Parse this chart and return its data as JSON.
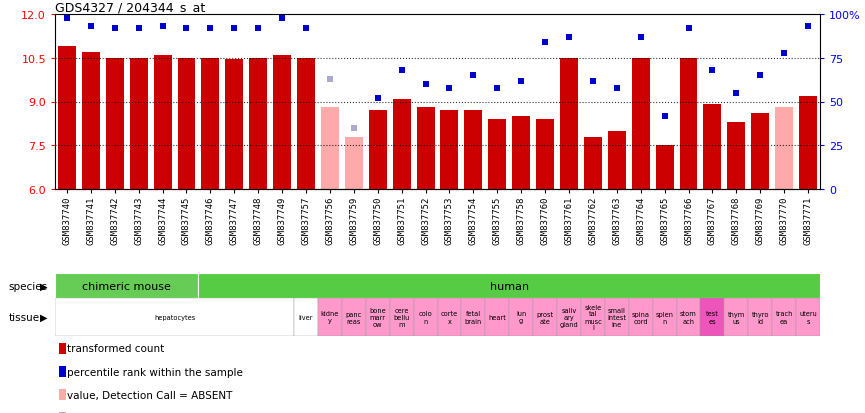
{
  "title": "GDS4327 / 204344_s_at",
  "samples": [
    "GSM837740",
    "GSM837741",
    "GSM837742",
    "GSM837743",
    "GSM837744",
    "GSM837745",
    "GSM837746",
    "GSM837747",
    "GSM837748",
    "GSM837749",
    "GSM837757",
    "GSM837756",
    "GSM837759",
    "GSM837750",
    "GSM837751",
    "GSM837752",
    "GSM837753",
    "GSM837754",
    "GSM837755",
    "GSM837758",
    "GSM837760",
    "GSM837761",
    "GSM837762",
    "GSM837763",
    "GSM837764",
    "GSM837765",
    "GSM837766",
    "GSM837767",
    "GSM837768",
    "GSM837769",
    "GSM837770",
    "GSM837771"
  ],
  "values": [
    10.9,
    10.7,
    10.5,
    10.5,
    10.6,
    10.5,
    10.5,
    10.47,
    10.5,
    10.6,
    10.5,
    8.8,
    7.8,
    8.7,
    9.1,
    8.8,
    8.7,
    8.7,
    8.4,
    8.5,
    8.4,
    10.5,
    7.8,
    8.0,
    10.5,
    7.5,
    10.5,
    8.9,
    8.3,
    8.6,
    8.8,
    9.2
  ],
  "absent": [
    false,
    false,
    false,
    false,
    false,
    false,
    false,
    false,
    false,
    false,
    false,
    true,
    true,
    false,
    false,
    false,
    false,
    false,
    false,
    false,
    false,
    false,
    false,
    false,
    false,
    false,
    false,
    false,
    false,
    false,
    true,
    false
  ],
  "percentile": [
    98,
    93,
    92,
    92,
    93,
    92,
    92,
    92,
    92,
    98,
    92,
    63,
    35,
    52,
    68,
    60,
    58,
    65,
    58,
    62,
    84,
    87,
    62,
    58,
    87,
    42,
    92,
    68,
    55,
    65,
    78,
    93
  ],
  "absent_rank": [
    false,
    false,
    false,
    false,
    false,
    false,
    false,
    false,
    false,
    false,
    false,
    true,
    true,
    false,
    false,
    false,
    false,
    false,
    false,
    false,
    false,
    false,
    false,
    false,
    false,
    false,
    false,
    false,
    false,
    false,
    false,
    false
  ],
  "bar_color_present": "#cc0000",
  "bar_color_absent": "#ffaaaa",
  "dot_color_present": "#0000cc",
  "dot_color_absent": "#aaaacc",
  "ylim_left": [
    6,
    12
  ],
  "ylim_right": [
    0,
    100
  ],
  "yticks_left": [
    6,
    7.5,
    9,
    10.5,
    12
  ],
  "yticks_right": [
    0,
    25,
    50,
    75,
    100
  ],
  "hlines": [
    7.5,
    9.0,
    10.5
  ],
  "background_color": "#ffffff"
}
